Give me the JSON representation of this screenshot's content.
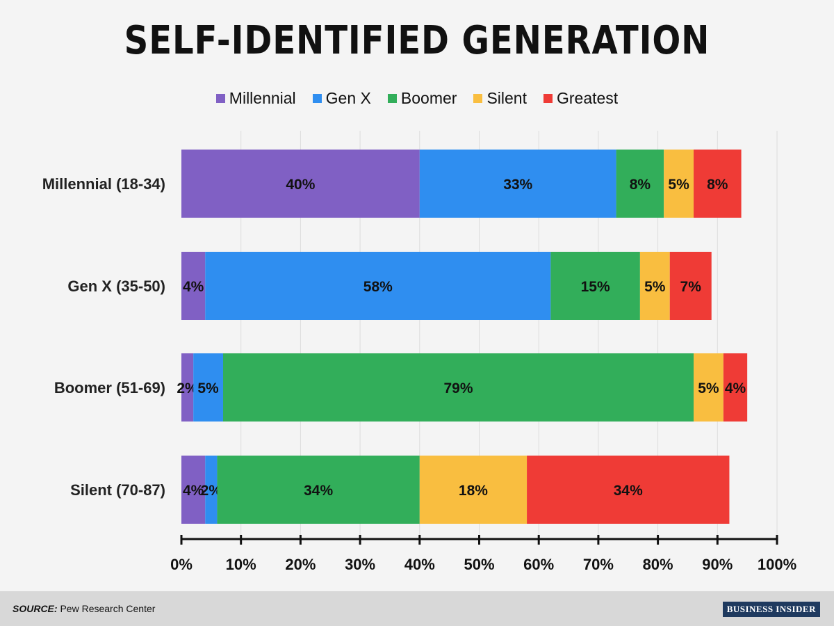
{
  "page": {
    "title": "SELF-IDENTIFIED GENERATION",
    "source_label": "SOURCE:",
    "source_text": "Pew Research Center",
    "brand": "BUSINESS INSIDER"
  },
  "chart_data": {
    "type": "bar",
    "orientation": "horizontal",
    "stacked": true,
    "title": "SELF-IDENTIFIED GENERATION",
    "categories": [
      "Millennial (18-34)",
      "Gen X (35-50)",
      "Boomer (51-69)",
      "Silent (70-87)"
    ],
    "series": [
      {
        "name": "Millennial",
        "color": "#8060c4",
        "values": [
          40,
          4,
          2,
          4
        ]
      },
      {
        "name": "Gen X",
        "color": "#2f8ef0",
        "values": [
          33,
          58,
          5,
          2
        ]
      },
      {
        "name": "Boomer",
        "color": "#32ae5a",
        "values": [
          8,
          15,
          79,
          34
        ]
      },
      {
        "name": "Silent",
        "color": "#f9be40",
        "values": [
          5,
          5,
          5,
          18
        ]
      },
      {
        "name": "Greatest",
        "color": "#ef3b36",
        "values": [
          8,
          7,
          4,
          34
        ]
      }
    ],
    "xlim": [
      0,
      100
    ],
    "xticks": [
      "0%",
      "10%",
      "20%",
      "30%",
      "40%",
      "50%",
      "60%",
      "70%",
      "80%",
      "90%",
      "100%"
    ],
    "value_suffix": "%",
    "grid": "vertical",
    "legend_position": "top-center"
  }
}
